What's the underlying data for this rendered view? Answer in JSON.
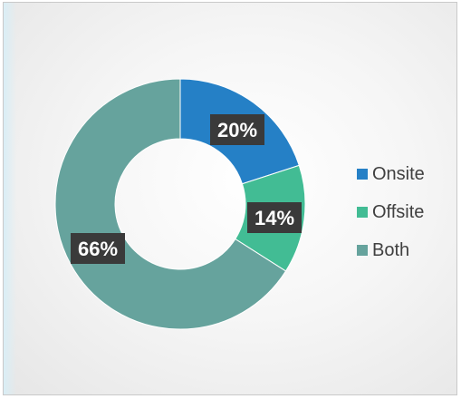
{
  "chart_data": {
    "type": "pie",
    "subtype": "doughnut",
    "categories": [
      "Onsite",
      "Offsite",
      "Both"
    ],
    "values": [
      20,
      14,
      66
    ],
    "labels": [
      "20%",
      "14%",
      "66%"
    ],
    "colors": [
      "#2580c6",
      "#42bc94",
      "#66a39d"
    ],
    "label_background": "#3a3a3a",
    "legend_position": "right",
    "title": ""
  }
}
